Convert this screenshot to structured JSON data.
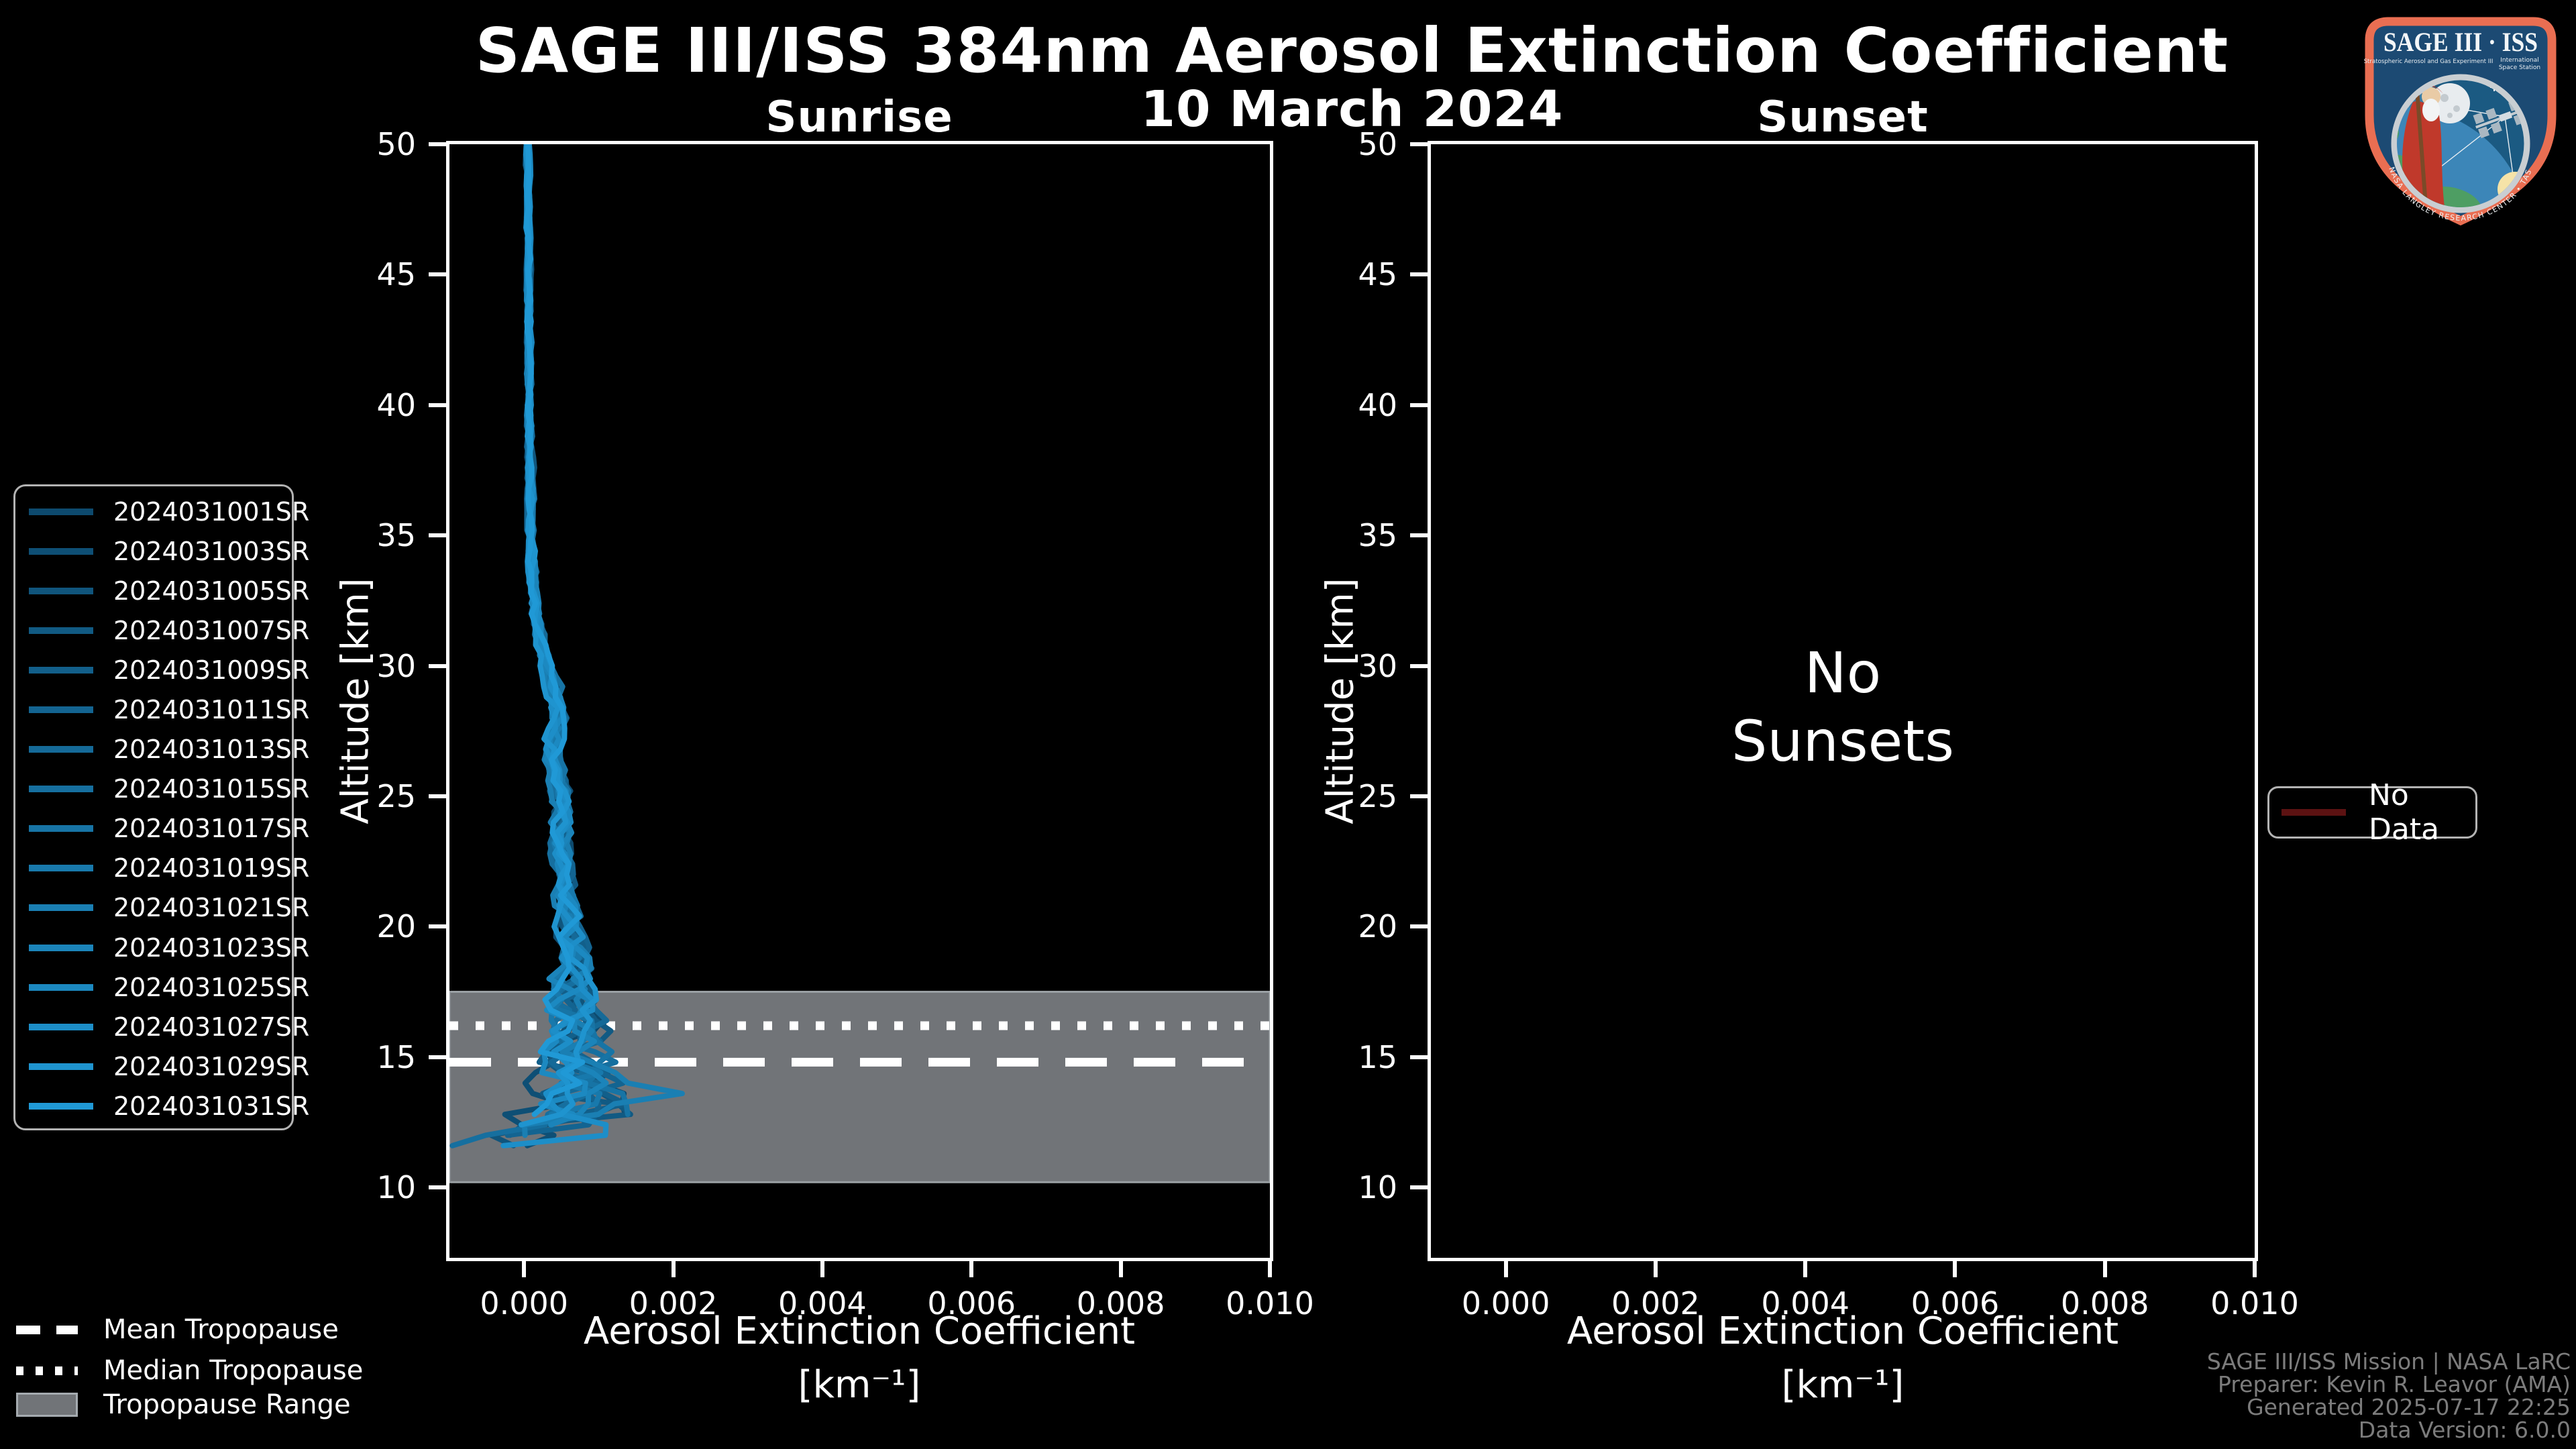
{
  "header": {
    "title": "SAGE III/ISS 384nm Aerosol Extinction Coefficient",
    "date": "10 March 2024"
  },
  "chart_data": {
    "type": "line",
    "title": "SAGE III/ISS 384nm Aerosol Extinction Coefficient",
    "subtitle": "10 March 2024",
    "xlabel": "Aerosol Extinction Coefficient",
    "xlabel_units": "[km⁻¹]",
    "ylabel": "Altitude [km]",
    "xlim": [
      -0.001,
      0.01
    ],
    "ylim": [
      7.3,
      50
    ],
    "xticks": [
      "0.000",
      "0.002",
      "0.004",
      "0.006",
      "0.008",
      "0.010"
    ],
    "xtick_values": [
      0.0,
      0.002,
      0.004,
      0.006,
      0.008,
      0.01
    ],
    "yticks": [
      10,
      15,
      20,
      25,
      30,
      35,
      40,
      45,
      50
    ],
    "grid": false,
    "legend_position": "outside-left",
    "panels": [
      {
        "id": "sunrise",
        "title": "Sunrise",
        "series": [
          {
            "name": "2024031001SR",
            "color": "#0d4a6e"
          },
          {
            "name": "2024031003SR",
            "color": "#0e4f75"
          },
          {
            "name": "2024031005SR",
            "color": "#10557c"
          },
          {
            "name": "2024031007SR",
            "color": "#115a83"
          },
          {
            "name": "2024031009SR",
            "color": "#125f8a"
          },
          {
            "name": "2024031011SR",
            "color": "#136491"
          },
          {
            "name": "2024031013SR",
            "color": "#156a98"
          },
          {
            "name": "2024031015SR",
            "color": "#166f9f"
          },
          {
            "name": "2024031017SR",
            "color": "#1774a5"
          },
          {
            "name": "2024031019SR",
            "color": "#1879ac"
          },
          {
            "name": "2024031021SR",
            "color": "#1a7fb3"
          },
          {
            "name": "2024031023SR",
            "color": "#1b84ba"
          },
          {
            "name": "2024031025SR",
            "color": "#1c89c1"
          },
          {
            "name": "2024031027SR",
            "color": "#1d8ec8"
          },
          {
            "name": "2024031029SR",
            "color": "#1f94cf"
          },
          {
            "name": "2024031031SR",
            "color": "#2099d6"
          }
        ],
        "profile_altitude_km": [
          50,
          45,
          40,
          35,
          32,
          30,
          29,
          28,
          27,
          26,
          25,
          24,
          23,
          22,
          21,
          20,
          19,
          18,
          17,
          16,
          15,
          14,
          13.5,
          13,
          12.5,
          12,
          11.5,
          11
        ],
        "profile_extinction_mean": [
          5e-05,
          6e-05,
          7e-05,
          0.0001,
          0.00015,
          0.0003,
          0.00042,
          0.00045,
          0.0004,
          0.00042,
          0.0005,
          0.00048,
          0.0005,
          0.00055,
          0.00055,
          0.0006,
          0.00065,
          0.0006,
          0.00065,
          0.0007,
          0.0007,
          0.00075,
          0.0008,
          0.0006,
          0.0003,
          0.0,
          -0.0003,
          -0.0004
        ],
        "spread_altitude_km": [
          50,
          40,
          35,
          30,
          28,
          25,
          22,
          20,
          18,
          16,
          15,
          14,
          13,
          12,
          11
        ],
        "spread_sigma": [
          2e-05,
          3e-05,
          4e-05,
          7e-05,
          9e-05,
          0.00011,
          0.0001,
          0.00014,
          0.00022,
          0.00032,
          0.00038,
          0.00045,
          0.00055,
          0.0006,
          0.00062
        ],
        "spikes": {
          "1": [
            12.6,
            -0.0009
          ],
          "3": [
            13.0,
            0.0014
          ],
          "6": [
            12.5,
            0.0012
          ],
          "7": [
            11.8,
            -0.0008
          ],
          "8": [
            16.3,
            0.0011
          ],
          "10": [
            13.5,
            0.0018
          ],
          "13": [
            12.2,
            0.0016
          ],
          "15": [
            14.0,
            0.001
          ]
        },
        "tropopause": {
          "mean_km": 14.8,
          "median_km": 16.2,
          "range_km": [
            10.2,
            17.5
          ]
        }
      },
      {
        "id": "sunset",
        "title": "Sunset",
        "message_line1": "No",
        "message_line2": "Sunsets",
        "series": []
      }
    ]
  },
  "tropopause_legend": {
    "mean_label": "Mean Tropopause",
    "median_label": "Median Tropopause",
    "range_label": "Tropopause Range"
  },
  "no_data_legend": {
    "label": "No Data",
    "color": "#5c1212"
  },
  "footer": {
    "lines": [
      "SAGE III/ISS Mission | NASA LaRC",
      "Preparer: Kevin R. Leavor (AMA)",
      "Generated 2025-07-17 22:25",
      "Data Version: 6.0.0"
    ]
  },
  "logo": {
    "title": "SAGE III · ISS",
    "subtitle_left": "Stratospheric Aerosol and Gas Experiment III",
    "subtitle_right_1": "International",
    "subtitle_right_2": "Space Station",
    "ring_text": "BALL • NASA LANGLEY RESEARCH CENTER • TAS-I • ESA"
  },
  "colors": {
    "background": "#000000",
    "foreground": "#ffffff",
    "tropopause_band": "#717478",
    "tropopause_band_edge": "#9aa0a4",
    "footer_text": "#7c7c7c",
    "no_data": "#5c1212"
  }
}
